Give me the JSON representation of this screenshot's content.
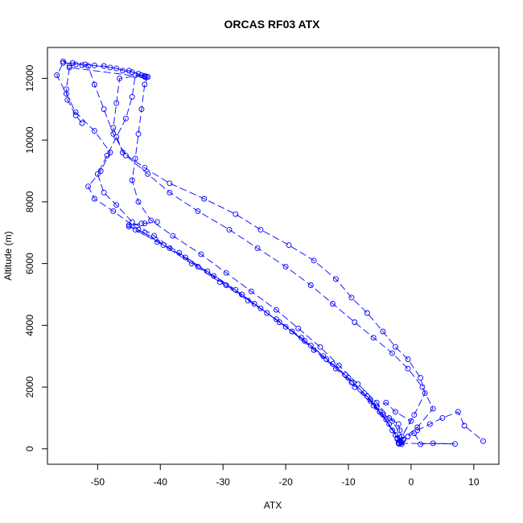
{
  "chart_data": {
    "type": "scatter",
    "title": "ORCAS RF03 ATX",
    "xlabel": "ATX",
    "ylabel": "Altitude (m)",
    "xlim": [
      -58,
      14
    ],
    "ylim": [
      -500,
      13000
    ],
    "xticks": [
      -50,
      -40,
      -30,
      -20,
      -10,
      0,
      10
    ],
    "yticks": [
      0,
      2000,
      4000,
      6000,
      8000,
      10000,
      12000
    ],
    "grid": false,
    "marker": "open-circle",
    "line_style": "dashed",
    "color": "#0000ff",
    "series": [
      {
        "points": [
          [
            -1.5,
            150
          ],
          [
            -0.5,
            400
          ],
          [
            1.0,
            600
          ],
          [
            3.0,
            800
          ],
          [
            5.0,
            1000
          ],
          [
            7.5,
            1200
          ],
          [
            8.5,
            750
          ],
          [
            11.5,
            250
          ]
        ]
      },
      {
        "points": [
          [
            -2.0,
            200
          ],
          [
            0.5,
            1100
          ],
          [
            2.2,
            1800
          ],
          [
            1.5,
            2300
          ],
          [
            -0.5,
            2900
          ],
          [
            -2.5,
            3300
          ],
          [
            -4.5,
            3800
          ],
          [
            -7.0,
            4400
          ],
          [
            -9.5,
            4900
          ],
          [
            -12.0,
            5500
          ],
          [
            -15.5,
            6100
          ],
          [
            -19.5,
            6600
          ],
          [
            -24.0,
            7100
          ],
          [
            -28.0,
            7600
          ],
          [
            -33.0,
            8100
          ],
          [
            -38.5,
            8600
          ],
          [
            -42.5,
            9100
          ],
          [
            -46.0,
            9600
          ],
          [
            -47.5,
            10400
          ],
          [
            -47.0,
            11200
          ],
          [
            -46.5,
            12000
          ],
          [
            -43.0,
            12100
          ]
        ]
      },
      {
        "points": [
          [
            -1.8,
            250
          ],
          [
            1.0,
            700
          ],
          [
            3.5,
            1300
          ],
          [
            1.8,
            2000
          ],
          [
            -0.5,
            2600
          ],
          [
            -3.0,
            3100
          ],
          [
            -6.0,
            3600
          ],
          [
            -9.0,
            4100
          ],
          [
            -12.5,
            4700
          ],
          [
            -16.0,
            5300
          ],
          [
            -20.0,
            5900
          ],
          [
            -24.5,
            6500
          ],
          [
            -29.0,
            7100
          ],
          [
            -34.0,
            7700
          ],
          [
            -38.5,
            8300
          ],
          [
            -42.0,
            8900
          ],
          [
            -45.5,
            9500
          ],
          [
            -47.5,
            10200
          ],
          [
            -49.0,
            11000
          ],
          [
            -50.5,
            11800
          ],
          [
            -51.5,
            12400
          ]
        ]
      },
      {
        "points": [
          [
            -1.2,
            300
          ],
          [
            -3.0,
            900
          ],
          [
            -5.5,
            1500
          ],
          [
            -8.5,
            2100
          ],
          [
            -11.5,
            2700
          ],
          [
            -14.5,
            3300
          ],
          [
            -18.0,
            3900
          ],
          [
            -21.5,
            4500
          ],
          [
            -25.5,
            5100
          ],
          [
            -29.5,
            5700
          ],
          [
            -33.5,
            6300
          ],
          [
            -38.0,
            6900
          ],
          [
            -41.5,
            7400
          ],
          [
            -43.5,
            8000
          ],
          [
            -44.5,
            8700
          ],
          [
            -44.0,
            9400
          ],
          [
            -43.5,
            10200
          ],
          [
            -43.0,
            11000
          ],
          [
            -42.5,
            11800
          ],
          [
            -42.0,
            12050
          ]
        ]
      },
      {
        "points": [
          [
            -2.5,
            450
          ],
          [
            -4.5,
            1100
          ],
          [
            -7.0,
            1700
          ],
          [
            -10.0,
            2300
          ],
          [
            -13.5,
            2900
          ],
          [
            -17.0,
            3500
          ],
          [
            -21.0,
            4100
          ],
          [
            -25.0,
            4700
          ],
          [
            -29.5,
            5300
          ],
          [
            -34.0,
            5900
          ],
          [
            -38.5,
            6500
          ],
          [
            -42.5,
            7000
          ],
          [
            -45.0,
            7200
          ],
          [
            -43.0,
            7300
          ]
        ]
      },
      {
        "points": [
          [
            -3.0,
            600
          ],
          [
            -5.0,
            1200
          ],
          [
            -7.5,
            1800
          ],
          [
            -10.5,
            2400
          ],
          [
            -14.0,
            3000
          ],
          [
            -17.5,
            3600
          ],
          [
            -21.5,
            4200
          ],
          [
            -26.0,
            4800
          ],
          [
            -30.5,
            5400
          ],
          [
            -35.0,
            6000
          ],
          [
            -39.5,
            6600
          ],
          [
            -43.5,
            7100
          ],
          [
            -47.5,
            7700
          ],
          [
            -50.5,
            8100
          ],
          [
            -51.5,
            8500
          ],
          [
            -49.5,
            9000
          ],
          [
            -48.0,
            9600
          ],
          [
            -50.5,
            10300
          ],
          [
            -53.5,
            10900
          ],
          [
            -55.0,
            11500
          ],
          [
            -56.5,
            12100
          ],
          [
            -55.5,
            12500
          ],
          [
            -52.0,
            12450
          ],
          [
            -48.0,
            12350
          ],
          [
            -45.0,
            12250
          ],
          [
            -42.5,
            12050
          ]
        ]
      },
      {
        "points": [
          [
            -1.5,
            200
          ],
          [
            -3.5,
            800
          ],
          [
            -6.0,
            1400
          ],
          [
            -9.0,
            2000
          ],
          [
            -12.0,
            2600
          ],
          [
            -15.5,
            3200
          ],
          [
            -19.0,
            3800
          ],
          [
            -23.0,
            4400
          ],
          [
            -27.0,
            5000
          ],
          [
            -31.5,
            5600
          ],
          [
            -36.0,
            6200
          ],
          [
            -40.5,
            6700
          ],
          [
            -44.0,
            7100
          ],
          [
            -45.0,
            7250
          ],
          [
            -42.5,
            7300
          ],
          [
            -40.5,
            7350
          ]
        ]
      },
      {
        "points": [
          [
            -2.2,
            350
          ],
          [
            -4.0,
            950
          ],
          [
            -6.5,
            1550
          ],
          [
            -9.5,
            2150
          ],
          [
            -12.5,
            2750
          ],
          [
            -16.0,
            3350
          ],
          [
            -20.0,
            3950
          ],
          [
            -24.0,
            4550
          ],
          [
            -28.0,
            5150
          ],
          [
            -32.5,
            5750
          ],
          [
            -37.0,
            6350
          ],
          [
            -41.0,
            6900
          ],
          [
            -44.5,
            7350
          ],
          [
            -47.0,
            7900
          ],
          [
            -49.0,
            8300
          ],
          [
            -50.0,
            8900
          ],
          [
            -48.5,
            9500
          ],
          [
            -47.0,
            10100
          ],
          [
            -45.5,
            10700
          ],
          [
            -44.5,
            11400
          ],
          [
            -44.0,
            12100
          ]
        ]
      },
      {
        "points": [
          [
            -53.5,
            12450
          ],
          [
            -54.5,
            12400
          ],
          [
            -55.5,
            12550
          ],
          [
            -54.0,
            12500
          ],
          [
            -52.5,
            12430
          ],
          [
            -50.5,
            12420
          ],
          [
            -49.0,
            12400
          ],
          [
            -47.0,
            12320
          ],
          [
            -46.0,
            12250
          ],
          [
            -44.5,
            12200
          ],
          [
            -43.5,
            12150
          ],
          [
            -42.5,
            12080
          ],
          [
            -42.2,
            12030
          ],
          [
            -54.5,
            12350
          ],
          [
            -55.0,
            11650
          ],
          [
            -54.8,
            11300
          ],
          [
            -53.5,
            10800
          ],
          [
            -52.5,
            10550
          ]
        ]
      },
      {
        "points": [
          [
            0.5,
            500
          ],
          [
            1.5,
            150
          ],
          [
            3.5,
            180
          ],
          [
            7.0,
            160
          ],
          [
            -2.0,
            180
          ],
          [
            -1.5,
            400
          ],
          [
            0.0,
            900
          ],
          [
            -2.5,
            1200
          ],
          [
            -4.0,
            1500
          ],
          [
            -5.5,
            1350
          ],
          [
            -6.5,
            1600
          ],
          [
            -5.0,
            1200
          ],
          [
            -3.5,
            1000
          ],
          [
            -2.0,
            800
          ],
          [
            -1.8,
            600
          ],
          [
            -2.2,
            320
          ],
          [
            -1.6,
            220
          ],
          [
            -1.9,
            160
          ]
        ]
      }
    ]
  }
}
